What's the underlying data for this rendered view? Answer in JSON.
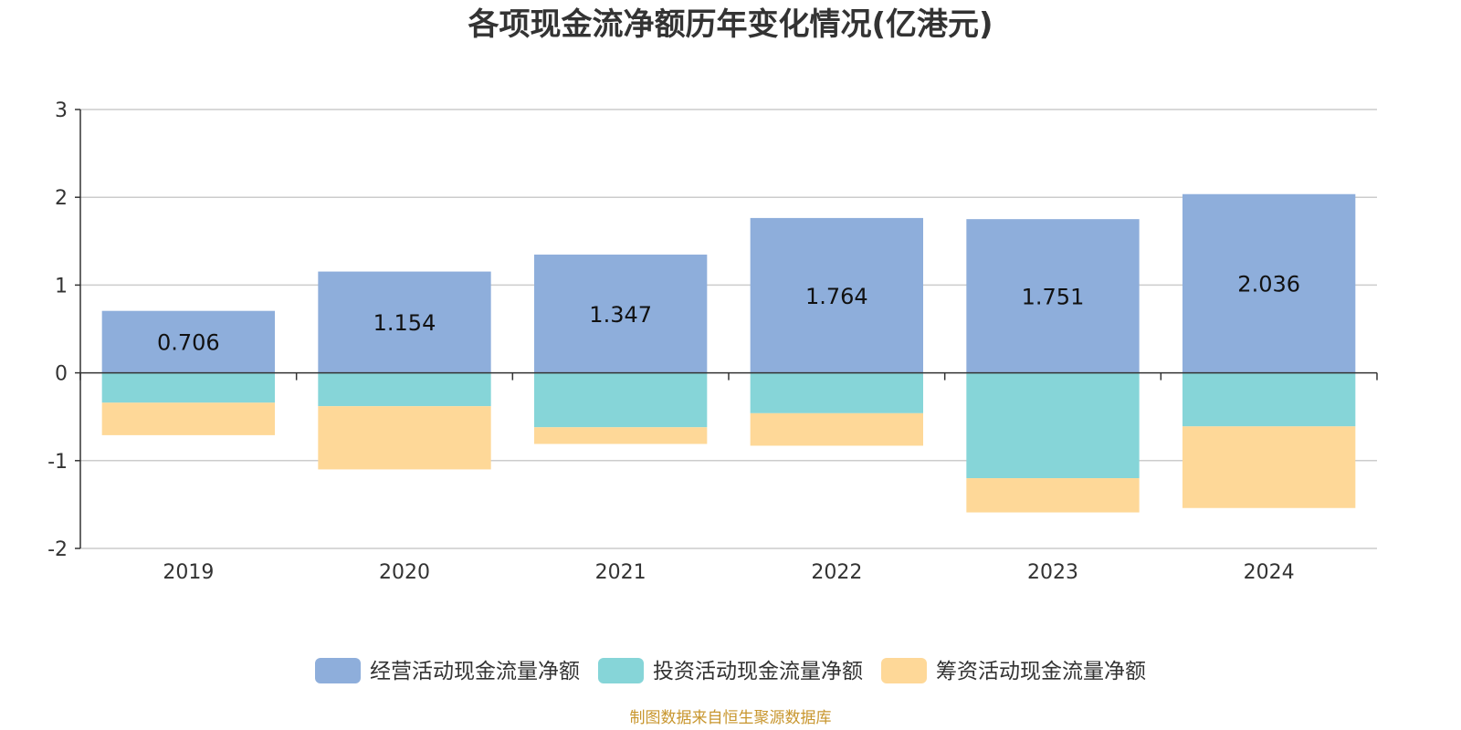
{
  "chart_data": {
    "type": "bar",
    "stacked": true,
    "title": "各项现金流净额历年变化情况(亿港元)",
    "categories": [
      "2019",
      "2020",
      "2021",
      "2022",
      "2023",
      "2024"
    ],
    "series": [
      {
        "name": "经营活动现金流量净额",
        "color": "#8eaedb",
        "values": [
          0.706,
          1.154,
          1.347,
          1.764,
          1.751,
          2.036
        ],
        "show_labels": true
      },
      {
        "name": "投资活动现金流量净额",
        "color": "#86d5d8",
        "values": [
          -0.34,
          -0.38,
          -0.62,
          -0.46,
          -1.2,
          -0.61
        ],
        "show_labels": false
      },
      {
        "name": "筹资活动现金流量净额",
        "color": "#fed898",
        "values": [
          -0.37,
          -0.72,
          -0.19,
          -0.37,
          -0.39,
          -0.93
        ],
        "show_labels": false
      }
    ],
    "ylim": [
      -2,
      3
    ],
    "yticks": [
      3,
      2,
      1,
      0,
      -1,
      -2
    ],
    "grid": true,
    "legend_position": "bottom-center"
  },
  "source_text": "制图数据来自恒生聚源数据库"
}
